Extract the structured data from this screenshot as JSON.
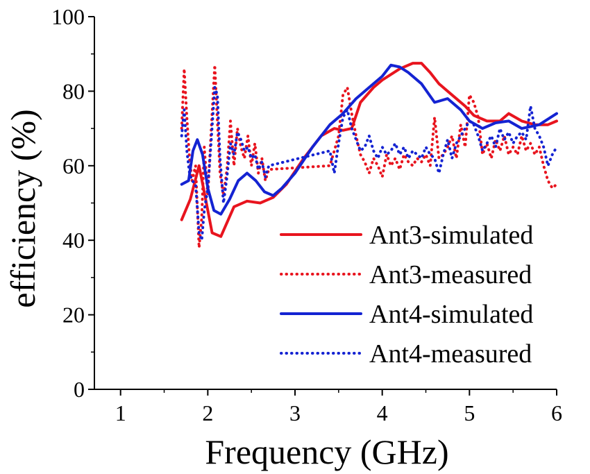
{
  "chart_data": {
    "type": "line",
    "title": "",
    "xlabel": "Frequency (GHz)",
    "ylabel": "efficiency (%)",
    "xlim": [
      0.7,
      6.0
    ],
    "ylim": [
      0,
      100
    ],
    "xticks": [
      1,
      2,
      3,
      4,
      5,
      6
    ],
    "yticks": [
      0,
      20,
      40,
      60,
      80,
      100
    ],
    "grid": false,
    "legend_position": "lower-right",
    "series": [
      {
        "name": "Ant3-simulated",
        "style": "solid",
        "color": "#e8141e",
        "x": [
          1.7,
          1.8,
          1.9,
          2.0,
          2.05,
          2.15,
          2.3,
          2.45,
          2.6,
          2.75,
          2.9,
          3.1,
          3.3,
          3.45,
          3.55,
          3.65,
          3.75,
          3.9,
          4.0,
          4.2,
          4.35,
          4.45,
          4.55,
          4.65,
          4.8,
          4.95,
          5.05,
          5.2,
          5.35,
          5.45,
          5.6,
          5.75,
          5.9,
          6.0
        ],
        "values": [
          45.5,
          51,
          60,
          48,
          42,
          41,
          49,
          50.5,
          50,
          51.5,
          55,
          62,
          68,
          70,
          69.5,
          70,
          77,
          81,
          83,
          86,
          87.5,
          87.5,
          85,
          82,
          79,
          76,
          73.5,
          72,
          72,
          74,
          72,
          71,
          71,
          72
        ]
      },
      {
        "name": "Ant3-measured",
        "style": "dotted",
        "color": "#e8141e",
        "x": [
          1.7,
          1.73,
          1.76,
          1.79,
          1.82,
          1.86,
          1.9,
          1.93,
          1.96,
          2.0,
          2.04,
          2.08,
          2.11,
          2.14,
          2.18,
          2.22,
          2.26,
          2.3,
          2.34,
          2.38,
          2.42,
          2.46,
          2.5,
          2.54,
          2.58,
          2.62,
          2.66,
          2.7,
          3.4,
          3.45,
          3.5,
          3.55,
          3.6,
          3.65,
          3.7,
          3.75,
          3.8,
          3.85,
          3.9,
          3.95,
          4.0,
          4.05,
          4.1,
          4.15,
          4.2,
          4.25,
          4.3,
          4.35,
          4.4,
          4.45,
          4.5,
          4.55,
          4.6,
          4.65,
          4.7,
          4.75,
          4.8,
          4.85,
          4.9,
          4.95,
          5.0,
          5.05,
          5.1,
          5.15,
          5.2,
          5.25,
          5.3,
          5.35,
          5.4,
          5.45,
          5.5,
          5.55,
          5.6,
          5.65,
          5.7,
          5.75,
          5.8,
          5.85,
          5.9,
          5.95,
          6.0
        ],
        "values": [
          70,
          86,
          73,
          62,
          56,
          60,
          38,
          46,
          65,
          52,
          70,
          87,
          72,
          58,
          52,
          59,
          72,
          60,
          70,
          65,
          62,
          68,
          60,
          66,
          58,
          62,
          56,
          59,
          60,
          64,
          68,
          79,
          81,
          74,
          68,
          63,
          61,
          58,
          62,
          60,
          57,
          63,
          60,
          62,
          59,
          63,
          61,
          60,
          62,
          61,
          63,
          60,
          73,
          62,
          63,
          65,
          68,
          62,
          71,
          65,
          79,
          77,
          73,
          63,
          66,
          62,
          67,
          64,
          68,
          63,
          65,
          63,
          68,
          64,
          66,
          63,
          65,
          60,
          56,
          54,
          55
        ]
      },
      {
        "name": "Ant4-simulated",
        "style": "solid",
        "color": "#1423d2",
        "x": [
          1.7,
          1.78,
          1.83,
          1.88,
          1.94,
          2.0,
          2.07,
          2.15,
          2.25,
          2.35,
          2.45,
          2.55,
          2.65,
          2.75,
          2.85,
          3.0,
          3.2,
          3.4,
          3.55,
          3.7,
          3.85,
          4.0,
          4.1,
          4.2,
          4.3,
          4.45,
          4.6,
          4.75,
          4.9,
          5.0,
          5.15,
          5.3,
          5.45,
          5.6,
          5.8,
          6.0
        ],
        "values": [
          55,
          56,
          64,
          67,
          63,
          54,
          48,
          47,
          51,
          56,
          58,
          56,
          53,
          52,
          54,
          58,
          65,
          71,
          74,
          78,
          81,
          84,
          87,
          86.5,
          85,
          82,
          77,
          78,
          75,
          72,
          70,
          71.5,
          72,
          70,
          71,
          74
        ]
      },
      {
        "name": "Ant4-measured",
        "style": "dotted",
        "color": "#1423d2",
        "x": [
          1.7,
          1.73,
          1.76,
          1.79,
          1.82,
          1.86,
          1.9,
          1.93,
          1.96,
          2.0,
          2.04,
          2.08,
          2.11,
          2.14,
          2.18,
          2.22,
          2.26,
          2.3,
          2.34,
          2.38,
          2.42,
          2.46,
          2.5,
          2.54,
          2.58,
          2.62,
          2.66,
          2.7,
          3.4,
          3.45,
          3.5,
          3.55,
          3.6,
          3.65,
          3.7,
          3.75,
          3.8,
          3.85,
          3.9,
          3.95,
          4.0,
          4.05,
          4.1,
          4.15,
          4.2,
          4.25,
          4.3,
          4.35,
          4.4,
          4.45,
          4.5,
          4.55,
          4.6,
          4.65,
          4.7,
          4.75,
          4.8,
          4.85,
          4.9,
          4.95,
          5.0,
          5.05,
          5.1,
          5.15,
          5.2,
          5.25,
          5.3,
          5.35,
          5.4,
          5.45,
          5.5,
          5.55,
          5.6,
          5.65,
          5.7,
          5.75,
          5.8,
          5.85,
          5.9,
          5.95,
          6.0
        ],
        "values": [
          68,
          75,
          64,
          58,
          56,
          55,
          42,
          40,
          48,
          54,
          67,
          81,
          79,
          62,
          50,
          57,
          66,
          63,
          69,
          67,
          64,
          65,
          62,
          63,
          59,
          61,
          57,
          60,
          64,
          58,
          66,
          73,
          75,
          70,
          67,
          64,
          65,
          68,
          64,
          62,
          65,
          63,
          64,
          66,
          63,
          65,
          62,
          64,
          63,
          62,
          65,
          63,
          62,
          58,
          63,
          67,
          62,
          66,
          68,
          70,
          72,
          71,
          68,
          64,
          66,
          68,
          65,
          70,
          67,
          69,
          66,
          68,
          69,
          67,
          76,
          70,
          68,
          65,
          60,
          63,
          65
        ]
      }
    ]
  }
}
